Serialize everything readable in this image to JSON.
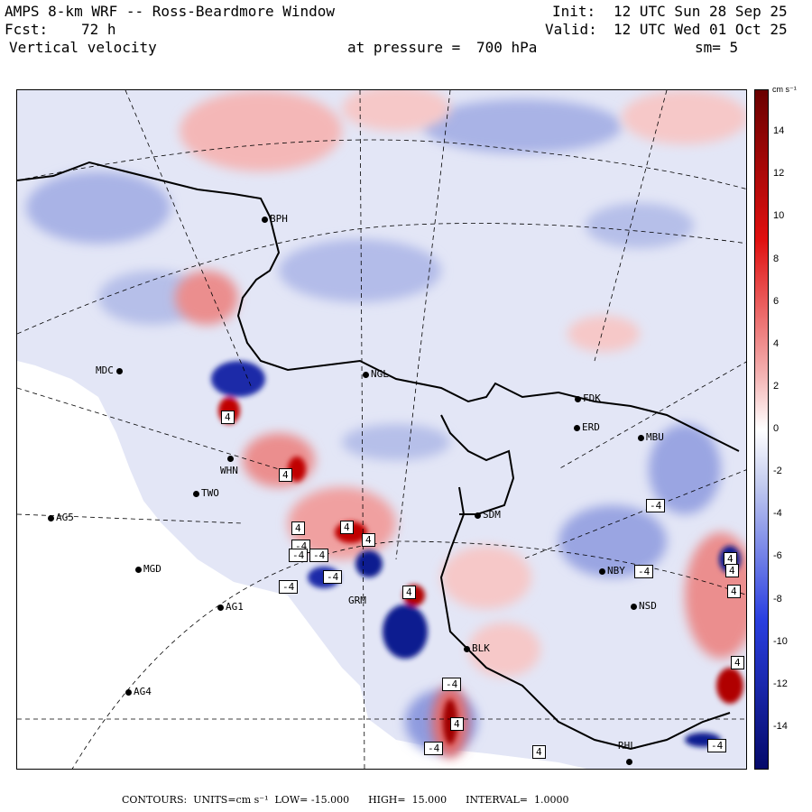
{
  "header": {
    "model": "AMPS 8-km WRF -- Ross-Beardmore Window",
    "fcst_label": "Fcst:",
    "fcst_value": "72 h",
    "field": "Vertical velocity",
    "init_label": "Init:",
    "init_value": "12 UTC Sun 28 Sep 25",
    "valid_label": "Valid:",
    "valid_value": "12 UTC Wed 01 Oct 25",
    "pressure_label": "at pressure =",
    "pressure_value": "700 hPa",
    "smoothing": "sm= 5"
  },
  "stations": [
    {
      "id": "BPH"
    },
    {
      "id": "MDC"
    },
    {
      "id": "NGL"
    },
    {
      "id": "FDK"
    },
    {
      "id": "ERD"
    },
    {
      "id": "MBU"
    },
    {
      "id": "WHN"
    },
    {
      "id": "TWO"
    },
    {
      "id": "AG5"
    },
    {
      "id": "SDM"
    },
    {
      "id": "MGD"
    },
    {
      "id": "AG1"
    },
    {
      "id": "GRM"
    },
    {
      "id": "NBY"
    },
    {
      "id": "NSD"
    },
    {
      "id": "BLK"
    },
    {
      "id": "AG4"
    },
    {
      "id": "RHL"
    }
  ],
  "contour_labels": [
    "4",
    "4",
    "4",
    "-4",
    "-4",
    "-4",
    "4",
    "-4",
    "4",
    "4",
    "-4",
    "-4",
    "4",
    "-4",
    "4",
    "4",
    "4",
    "-4",
    "4",
    "-4",
    "4",
    "-4"
  ],
  "colorbar": {
    "units": "cm s⁻¹",
    "ticks": [
      "14",
      "12",
      "10",
      "8",
      "6",
      "4",
      "2",
      "0",
      "-2",
      "-4",
      "-6",
      "-8",
      "-10",
      "-12",
      "-14"
    ],
    "tick_values": [
      14,
      12,
      10,
      8,
      6,
      4,
      2,
      0,
      -2,
      -4,
      -6,
      -8,
      -10,
      -12,
      -14
    ],
    "range": [
      -16,
      16
    ],
    "colors": {
      "pos_max": "#6a0000",
      "pos_mid": "#e01010",
      "pos_low": "#f4b3b3",
      "zero": "#ffffff",
      "neg_low": "#c4ccef",
      "neg_mid": "#2a3fe0",
      "neg_max": "#050a6a"
    }
  },
  "footer": {
    "contours_label": "CONTOURS:",
    "units_label": "UNITS=cm s⁻¹",
    "low_label": "LOW=",
    "low_value": "-15.000",
    "high_label": "HIGH=",
    "high_value": "15.000",
    "interval_label": "INTERVAL=",
    "interval_value": "1.0000"
  },
  "colors": {
    "land_white": "#ffffff",
    "light_blue": "#d8dcf3",
    "medium_blue": "#a9b3e6",
    "light_red": "#f6c8c8",
    "medium_red": "#eb8e8e",
    "dark_red": "#b00000",
    "dark_blue": "#101a90"
  }
}
